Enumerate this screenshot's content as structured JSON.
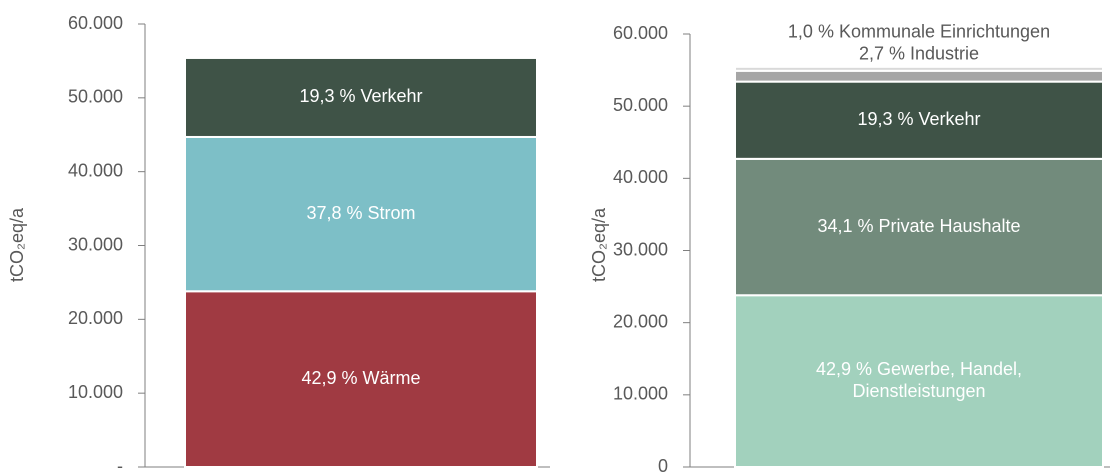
{
  "chart_data": [
    {
      "type": "bar",
      "stacked": true,
      "ylabel": "tCO₂eq/a",
      "ylim": [
        0,
        60000
      ],
      "yticks": [
        {
          "value": 0,
          "label": "-"
        },
        {
          "value": 10000,
          "label": "10.000"
        },
        {
          "value": 20000,
          "label": "20.000"
        },
        {
          "value": 30000,
          "label": "30.000"
        },
        {
          "value": 40000,
          "label": "40.000"
        },
        {
          "value": 50000,
          "label": "50.000"
        },
        {
          "value": 60000,
          "label": "60.000"
        }
      ],
      "series": [
        {
          "name": "42,9 % Wärme",
          "color": "#a03a42",
          "values": [
            23800
          ]
        },
        {
          "name": "37,8 % Strom",
          "color": "#7dbfc7",
          "values": [
            20900
          ]
        },
        {
          "name": "19,3 % Verkehr",
          "color": "#3f5347",
          "values": [
            10700
          ]
        }
      ]
    },
    {
      "type": "bar",
      "stacked": true,
      "ylabel": "tCO₂eq/a",
      "ylim": [
        0,
        60000
      ],
      "yticks": [
        0,
        {
          "value": 10000,
          "label": "10.000"
        },
        {
          "value": 20000,
          "label": "20.000"
        },
        {
          "value": 30000,
          "label": "30.000"
        },
        {
          "value": 40000,
          "label": "40.000"
        },
        {
          "value": 50000,
          "label": "50.000"
        },
        {
          "value": 60000,
          "label": "60.000"
        }
      ],
      "series": [
        {
          "name": "42,9 % Gewerbe, Handel, Dienstleistungen",
          "color": "#a2d1bd",
          "values": [
            23800
          ]
        },
        {
          "name": "34,1 % Private Haushalte",
          "color": "#728b7c",
          "values": [
            18900
          ]
        },
        {
          "name": "19,3 % Verkehr",
          "color": "#3f5347",
          "values": [
            10700
          ]
        },
        {
          "name": "2,7 % Industrie",
          "color": "#a6a6a6",
          "values": [
            1500
          ]
        },
        {
          "name": "1,0 % Kommunale Einrichtungen",
          "color": "#d9d9d9",
          "values": [
            550
          ]
        }
      ]
    }
  ]
}
